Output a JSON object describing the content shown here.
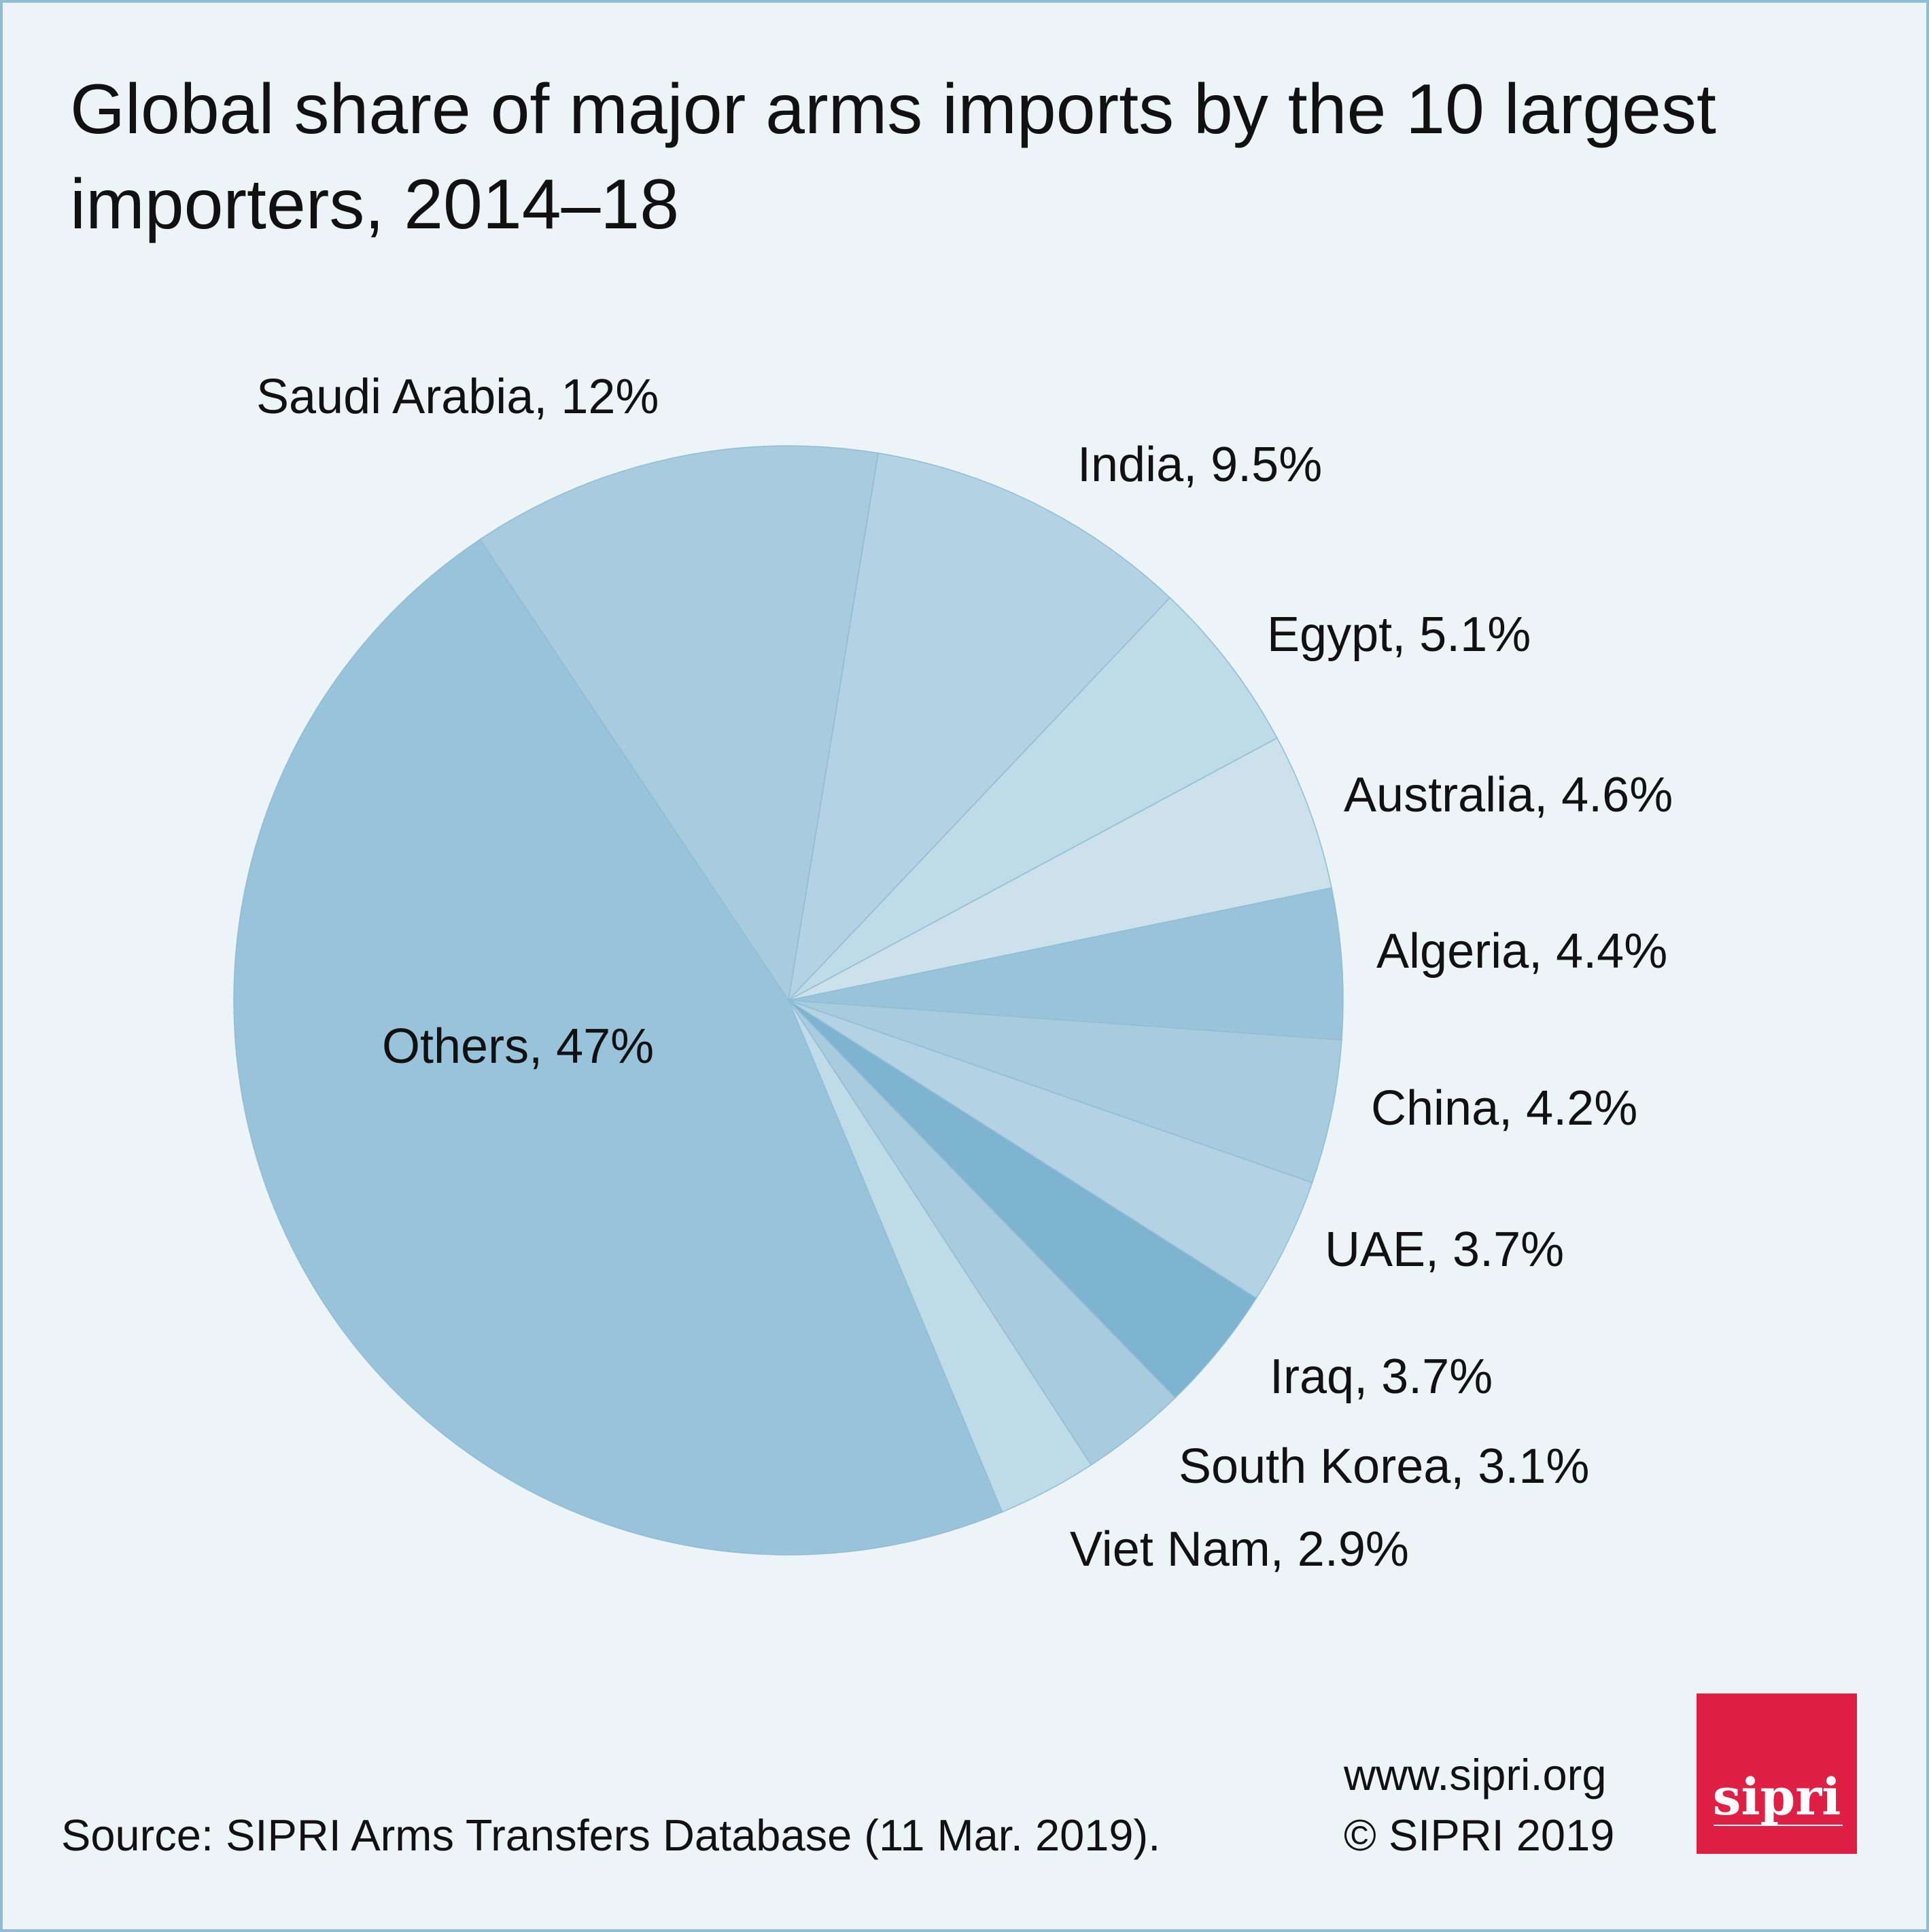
{
  "chart_data": {
    "type": "pie",
    "title_lines": [
      "Global share of major arms imports by the 10 largest",
      "importers, 2014–18"
    ],
    "slices": [
      {
        "label": "Saudi Arabia, 12%",
        "name": "Saudi Arabia",
        "value": 12,
        "color": "#a8cbde"
      },
      {
        "label": "India, 9.5%",
        "name": "India",
        "value": 9.5,
        "color": "#b3d3e4"
      },
      {
        "label": "Egypt, 5.1%",
        "name": "Egypt",
        "value": 5.1,
        "color": "#bfdbe8"
      },
      {
        "label": "Australia, 4.6%",
        "name": "Australia",
        "value": 4.6,
        "color": "#cce1ec"
      },
      {
        "label": "Algeria, 4.4%",
        "name": "Algeria",
        "value": 4.4,
        "color": "#99c3da"
      },
      {
        "label": "China, 4.2%",
        "name": "China",
        "value": 4.2,
        "color": "#a8cbde"
      },
      {
        "label": "UAE, 3.7%",
        "name": "UAE",
        "value": 3.7,
        "color": "#b3d3e4"
      },
      {
        "label": "Iraq, 3.7%",
        "name": "Iraq",
        "value": 3.7,
        "color": "#7fb4d0"
      },
      {
        "label": "South Korea, 3.1%",
        "name": "South Korea",
        "value": 3.1,
        "color": "#a8cbde"
      },
      {
        "label": "Viet Nam, 2.9%",
        "name": "Viet Nam",
        "value": 2.9,
        "color": "#bfdbe8"
      },
      {
        "label": "Others, 47%",
        "name": "Others",
        "value": 47,
        "color": "#99c3da"
      }
    ]
  },
  "footer": {
    "source": "Source: SIPRI Arms Transfers Database (11 Mar. 2019).",
    "website": "www.sipri.org",
    "copyright": "© SIPRI 2019"
  },
  "logo": {
    "text": "sipri",
    "color": "#e01f45"
  },
  "colors": {
    "background": "#edf4f8",
    "border": "#8fbcd6"
  }
}
